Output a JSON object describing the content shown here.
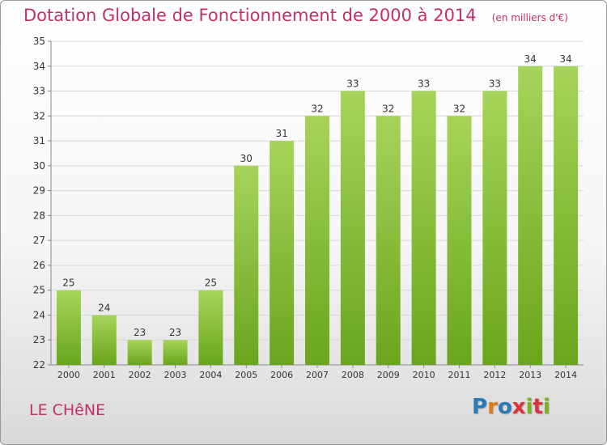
{
  "title": "Dotation Globale de Fonctionnement de 2000 à 2014",
  "unit_note": "(en milliers d'€)",
  "place": "LE CHêNE",
  "logo": {
    "letters": [
      "P",
      "r",
      "o",
      "x",
      "i",
      "t",
      "i"
    ],
    "colors": [
      "#2a7ab8",
      "#e07b18",
      "#2a7ab8",
      "#d9333f",
      "#7ab020",
      "#d9333f",
      "#7ab020"
    ]
  },
  "colors": {
    "title": "#c0306a",
    "bar_light": "#a6d45a",
    "bar_dark": "#6aa51d",
    "grid": "#d8d8d8"
  },
  "chart_data": {
    "type": "bar",
    "title": "Dotation Globale de Fonctionnement de 2000 à 2014",
    "subtitle": "(en milliers d'€)",
    "categories": [
      "2000",
      "2001",
      "2002",
      "2003",
      "2004",
      "2005",
      "2006",
      "2007",
      "2008",
      "2009",
      "2010",
      "2011",
      "2012",
      "2013",
      "2014"
    ],
    "values": [
      25,
      24,
      23,
      23,
      25,
      30,
      31,
      32,
      33,
      32,
      33,
      32,
      33,
      34,
      34
    ],
    "ylim": [
      22,
      35
    ],
    "yticks": [
      22,
      23,
      24,
      25,
      26,
      27,
      28,
      29,
      30,
      31,
      32,
      33,
      34,
      35
    ],
    "grid": true,
    "data_labels": true,
    "legend": "none"
  }
}
